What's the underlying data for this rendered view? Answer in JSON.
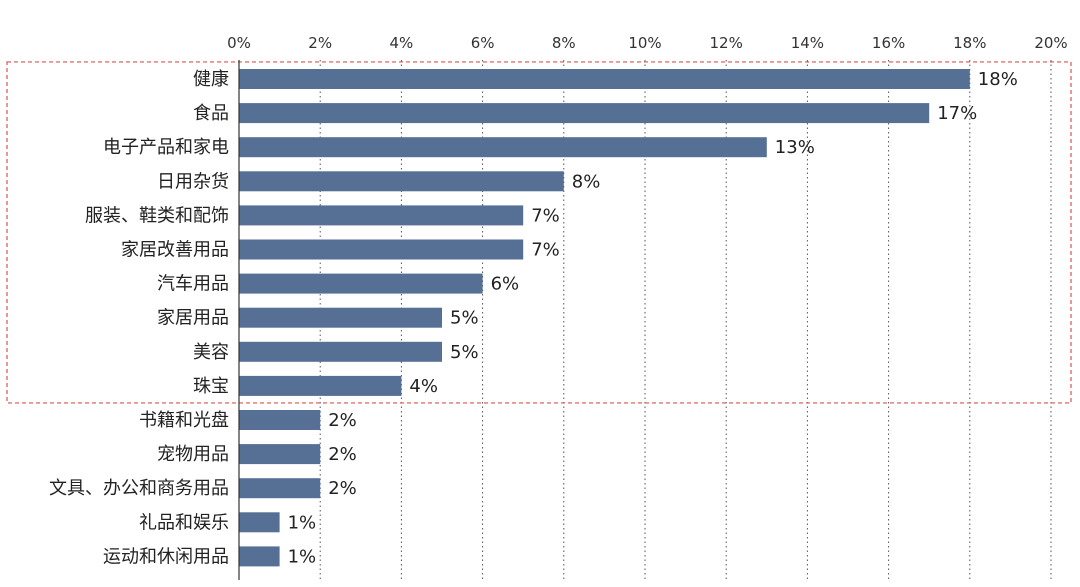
{
  "chart_data": {
    "type": "bar",
    "orientation": "horizontal",
    "categories": [
      "健康",
      "食品",
      "电子产品和家电",
      "日用杂货",
      "服装、鞋类和配饰",
      "家居改善用品",
      "汽车用品",
      "家居用品",
      "美容",
      "珠宝",
      "书籍和光盘",
      "宠物用品",
      "文具、办公和商务用品",
      "礼品和娱乐",
      "运动和休闲用品"
    ],
    "values": [
      18,
      17,
      13,
      8,
      7,
      7,
      6,
      5,
      5,
      4,
      2,
      2,
      2,
      1,
      1
    ],
    "value_labels": [
      "18%",
      "17%",
      "13%",
      "8%",
      "7%",
      "7%",
      "6%",
      "5%",
      "5%",
      "4%",
      "2%",
      "2%",
      "2%",
      "1%",
      "1%"
    ],
    "x_ticks": [
      0,
      2,
      4,
      6,
      8,
      10,
      12,
      14,
      16,
      18,
      20
    ],
    "x_tick_labels": [
      "0%",
      "2%",
      "4%",
      "6%",
      "8%",
      "10%",
      "12%",
      "14%",
      "16%",
      "18%",
      "20%"
    ],
    "xlim": [
      0,
      20
    ],
    "axis_position": "top",
    "grid": "vertical-dotted",
    "bar_color": "#566f95",
    "highlight_color": "#d9534f",
    "highlighted_categories": [
      "健康",
      "食品",
      "电子产品和家电",
      "日用杂货",
      "服装、鞋类和配饰",
      "家居改善用品",
      "汽车用品",
      "家居用品",
      "美容",
      "珠宝"
    ],
    "title": "",
    "xlabel": "",
    "ylabel": ""
  }
}
